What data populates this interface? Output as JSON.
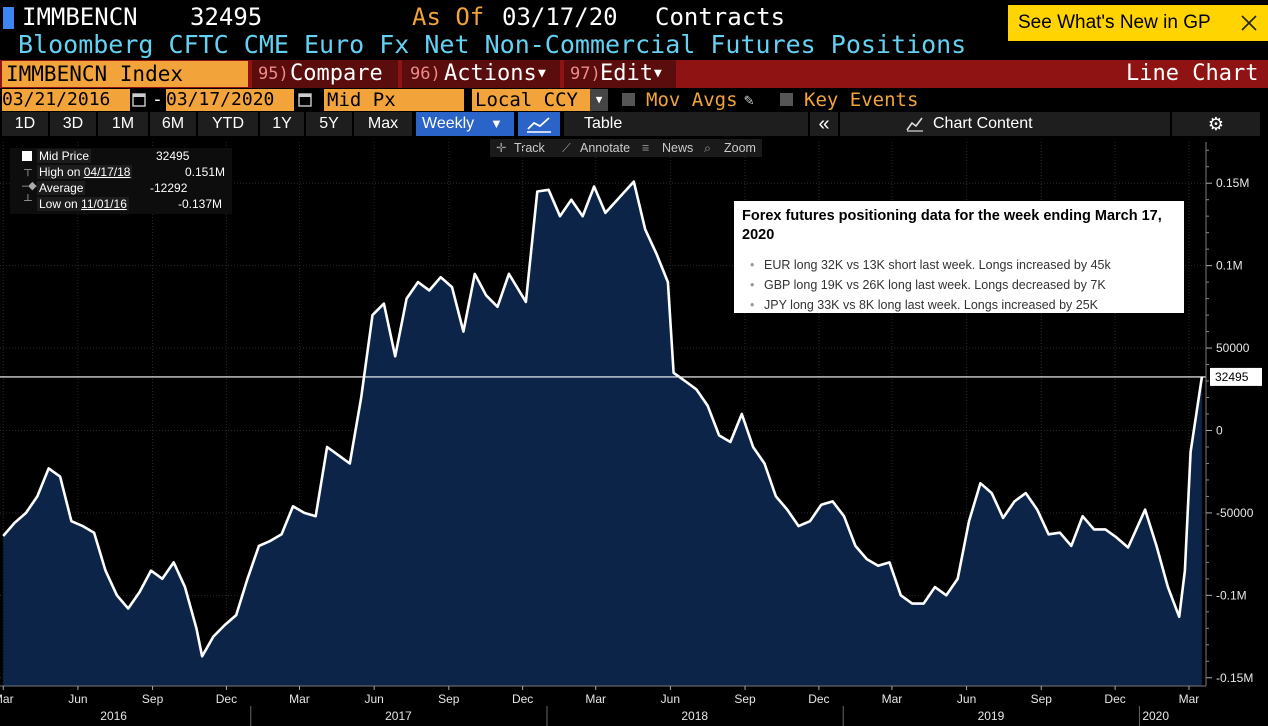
{
  "header": {
    "ticker": "IMMBENCN",
    "value": "32495",
    "as_of_label": "As Of",
    "as_of_date": "03/17/20",
    "units": "Contracts",
    "whats_new": "See What's New in GP",
    "subtitle": "Bloomberg CFTC CME Euro Fx Net Non-Commercial Futures Positions"
  },
  "toolbar": {
    "index": "IMMBENCN Index",
    "compare_num": "95)",
    "compare": "Compare",
    "actions_num": "96)",
    "actions": "Actions",
    "edit_num": "97)",
    "edit": "Edit",
    "chart_type": "Line Chart"
  },
  "controls": {
    "start_date": "03/21/2016",
    "end_date": "03/17/2020",
    "field": "Mid Px",
    "currency": "Local CCY",
    "mov_avgs": "Mov Avgs",
    "key_events": "Key Events"
  },
  "periods": [
    "1D",
    "3D",
    "1M",
    "6M",
    "YTD",
    "1Y",
    "5Y",
    "Max"
  ],
  "frequency": "Weekly",
  "table_label": "Table",
  "chart_content_label": "Chart Content",
  "chart_tools": [
    "Track",
    "Annotate",
    "News",
    "Zoom"
  ],
  "legend": {
    "mid_price_label": "Mid Price",
    "mid_price_value": "32495",
    "high_label": "High on",
    "high_date": "04/17/18",
    "high_value": "0.151M",
    "average_label": "Average",
    "average_value": "-12292",
    "low_label": "Low on",
    "low_date": "11/01/16",
    "low_value": "-0.137M"
  },
  "annotation": {
    "title": "Forex futures positioning data for the week ending March 17, 2020",
    "bullets": [
      "EUR long 32K vs 13K short last week. Longs increased by 45k",
      "GBP long 19K vs 26K long last week. Longs decreased by 7K",
      "JPY long 33K vs 8K long last week. Longs increased by 25K"
    ]
  },
  "colors": {
    "accent_orange": "#f2a43a",
    "toolbar_red": "#8e1312",
    "subtitle_cyan": "#64d1f2",
    "area_fill": "#0b2447",
    "line": "#ffffff",
    "whats_new_yellow": "#ffd400",
    "active_blue": "#2b64c8"
  },
  "chart_data": {
    "type": "area",
    "last_value_label": "32495",
    "ylim": [
      -155000,
      175000
    ],
    "y_ticks": [
      {
        "value": 150000,
        "label": "0.15M"
      },
      {
        "value": 100000,
        "label": "0.1M"
      },
      {
        "value": 50000,
        "label": "50000"
      },
      {
        "value": 0,
        "label": "0"
      },
      {
        "value": -50000,
        "label": "-50000"
      },
      {
        "value": -100000,
        "label": "-0.1M"
      },
      {
        "value": -150000,
        "label": "-0.15M"
      }
    ],
    "x_ticks": [
      {
        "date": "2016-03-01",
        "label": "Mar"
      },
      {
        "date": "2016-06-01",
        "label": "Jun"
      },
      {
        "date": "2016-09-01",
        "label": "Sep"
      },
      {
        "date": "2016-12-01",
        "label": "Dec"
      },
      {
        "date": "2017-03-01",
        "label": "Mar"
      },
      {
        "date": "2017-06-01",
        "label": "Jun"
      },
      {
        "date": "2017-09-01",
        "label": "Sep"
      },
      {
        "date": "2017-12-01",
        "label": "Dec"
      },
      {
        "date": "2018-03-01",
        "label": "Mar"
      },
      {
        "date": "2018-06-01",
        "label": "Jun"
      },
      {
        "date": "2018-09-01",
        "label": "Sep"
      },
      {
        "date": "2018-12-01",
        "label": "Dec"
      },
      {
        "date": "2019-03-01",
        "label": "Mar"
      },
      {
        "date": "2019-06-01",
        "label": "Jun"
      },
      {
        "date": "2019-09-01",
        "label": "Sep"
      },
      {
        "date": "2019-12-01",
        "label": "Dec"
      },
      {
        "date": "2020-03-01",
        "label": "Mar"
      }
    ],
    "year_labels": [
      {
        "date": "2016-07-15",
        "label": "2016"
      },
      {
        "date": "2017-07-01",
        "label": "2017"
      },
      {
        "date": "2018-07-01",
        "label": "2018"
      },
      {
        "date": "2019-07-01",
        "label": "2019"
      },
      {
        "date": "2020-01-20",
        "label": "2020"
      }
    ],
    "year_dividers": [
      "2016-12-31",
      "2017-12-31",
      "2018-12-31",
      "2019-12-31"
    ],
    "series": [
      {
        "points": [
          [
            "2016-03-01",
            -64000
          ],
          [
            "2016-03-15",
            -56000
          ],
          [
            "2016-03-29",
            -50000
          ],
          [
            "2016-04-12",
            -40000
          ],
          [
            "2016-04-26",
            -23000
          ],
          [
            "2016-05-10",
            -28000
          ],
          [
            "2016-05-24",
            -55000
          ],
          [
            "2016-06-07",
            -58000
          ],
          [
            "2016-06-21",
            -62000
          ],
          [
            "2016-07-05",
            -85000
          ],
          [
            "2016-07-19",
            -100000
          ],
          [
            "2016-08-02",
            -108000
          ],
          [
            "2016-08-16",
            -98000
          ],
          [
            "2016-08-30",
            -85000
          ],
          [
            "2016-09-13",
            -90000
          ],
          [
            "2016-09-27",
            -80000
          ],
          [
            "2016-10-11",
            -95000
          ],
          [
            "2016-10-25",
            -120000
          ],
          [
            "2016-11-01",
            -137000
          ],
          [
            "2016-11-15",
            -125000
          ],
          [
            "2016-11-29",
            -118000
          ],
          [
            "2016-12-13",
            -112000
          ],
          [
            "2016-12-27",
            -90000
          ],
          [
            "2017-01-10",
            -70000
          ],
          [
            "2017-01-24",
            -67000
          ],
          [
            "2017-02-07",
            -63000
          ],
          [
            "2017-02-21",
            -46000
          ],
          [
            "2017-03-07",
            -50000
          ],
          [
            "2017-03-21",
            -52000
          ],
          [
            "2017-04-04",
            -10000
          ],
          [
            "2017-04-18",
            -15000
          ],
          [
            "2017-05-02",
            -20000
          ],
          [
            "2017-05-16",
            20000
          ],
          [
            "2017-05-30",
            70000
          ],
          [
            "2017-06-13",
            77000
          ],
          [
            "2017-06-27",
            45000
          ],
          [
            "2017-07-11",
            80000
          ],
          [
            "2017-07-25",
            90000
          ],
          [
            "2017-08-08",
            85000
          ],
          [
            "2017-08-22",
            93000
          ],
          [
            "2017-09-05",
            87000
          ],
          [
            "2017-09-19",
            60000
          ],
          [
            "2017-10-03",
            95000
          ],
          [
            "2017-10-17",
            82000
          ],
          [
            "2017-10-31",
            75000
          ],
          [
            "2017-11-14",
            95000
          ],
          [
            "2017-12-05",
            78000
          ],
          [
            "2017-12-19",
            145000
          ],
          [
            "2018-01-02",
            146000
          ],
          [
            "2018-01-16",
            130000
          ],
          [
            "2018-01-30",
            140000
          ],
          [
            "2018-02-13",
            130000
          ],
          [
            "2018-02-27",
            148000
          ],
          [
            "2018-03-13",
            132000
          ],
          [
            "2018-04-17",
            151000
          ],
          [
            "2018-05-01",
            122000
          ],
          [
            "2018-05-15",
            107000
          ],
          [
            "2018-05-29",
            90000
          ],
          [
            "2018-06-05",
            35000
          ],
          [
            "2018-06-19",
            30000
          ],
          [
            "2018-07-03",
            25000
          ],
          [
            "2018-07-17",
            15000
          ],
          [
            "2018-07-31",
            -3000
          ],
          [
            "2018-08-14",
            -7000
          ],
          [
            "2018-08-28",
            10000
          ],
          [
            "2018-09-11",
            -10000
          ],
          [
            "2018-09-25",
            -20000
          ],
          [
            "2018-10-09",
            -40000
          ],
          [
            "2018-10-23",
            -48000
          ],
          [
            "2018-11-06",
            -58000
          ],
          [
            "2018-11-20",
            -55000
          ],
          [
            "2018-12-04",
            -45000
          ],
          [
            "2018-12-18",
            -43000
          ],
          [
            "2019-01-01",
            -52000
          ],
          [
            "2019-01-15",
            -70000
          ],
          [
            "2019-01-29",
            -78000
          ],
          [
            "2019-02-12",
            -82000
          ],
          [
            "2019-02-26",
            -80000
          ],
          [
            "2019-03-12",
            -100000
          ],
          [
            "2019-03-26",
            -105000
          ],
          [
            "2019-04-09",
            -105000
          ],
          [
            "2019-04-23",
            -95000
          ],
          [
            "2019-05-07",
            -100000
          ],
          [
            "2019-05-21",
            -90000
          ],
          [
            "2019-06-04",
            -55000
          ],
          [
            "2019-06-18",
            -32000
          ],
          [
            "2019-07-02",
            -38000
          ],
          [
            "2019-07-16",
            -53000
          ],
          [
            "2019-07-30",
            -43000
          ],
          [
            "2019-08-13",
            -38000
          ],
          [
            "2019-08-27",
            -48000
          ],
          [
            "2019-09-10",
            -63000
          ],
          [
            "2019-09-24",
            -62000
          ],
          [
            "2019-10-08",
            -70000
          ],
          [
            "2019-10-22",
            -52000
          ],
          [
            "2019-11-05",
            -60000
          ],
          [
            "2019-11-19",
            -60000
          ],
          [
            "2019-12-03",
            -65000
          ],
          [
            "2019-12-17",
            -71000
          ],
          [
            "2020-01-07",
            -48000
          ],
          [
            "2020-01-21",
            -70000
          ],
          [
            "2020-02-04",
            -95000
          ],
          [
            "2020-02-18",
            -113000
          ],
          [
            "2020-02-25",
            -85000
          ],
          [
            "2020-03-03",
            -13000
          ],
          [
            "2020-03-17",
            32495
          ]
        ]
      }
    ]
  }
}
